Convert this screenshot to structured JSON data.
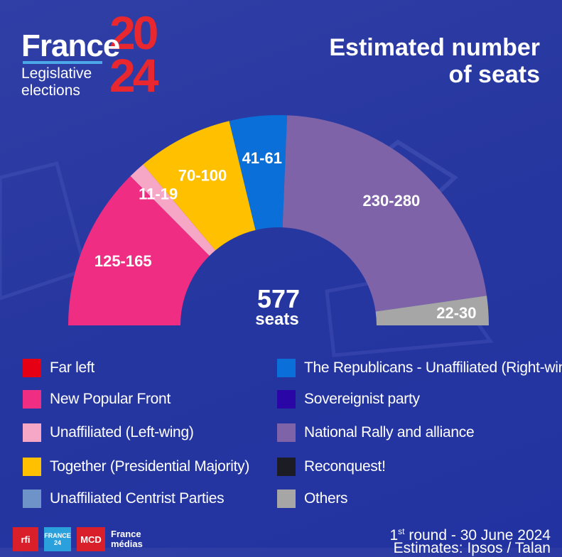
{
  "brand": {
    "name": "France",
    "year_top": "20",
    "year_bottom": "24",
    "subtitle_line1": "Legislative",
    "subtitle_line2": "elections"
  },
  "title": {
    "line1": "Estimated number",
    "line2": "of seats"
  },
  "chart_data": {
    "type": "pie",
    "subtype": "hemicycle",
    "title": "Estimated number of seats",
    "total_label": "577",
    "total_sublabel": "seats",
    "total": 577,
    "segments": [
      {
        "party": "New Popular Front",
        "range": "125-165",
        "value": 145,
        "color": "#ef2d83"
      },
      {
        "party": "Unaffiliated (Left-wing)",
        "range": "11-19",
        "value": 15,
        "color": "#f7a7c6"
      },
      {
        "party": "Together (Presidential Majority)",
        "range": "70-100",
        "value": 85,
        "color": "#ffc000"
      },
      {
        "party": "The Republicans - Unaffiliated (Right-wing)",
        "range": "41-61",
        "value": 51,
        "color": "#0a6fd8"
      },
      {
        "party": "National Rally and alliance",
        "range": "230-280",
        "value": 255,
        "color": "#7f63a8"
      },
      {
        "party": "Others",
        "range": "22-30",
        "value": 26,
        "color": "#a6a6a6"
      }
    ]
  },
  "legend": {
    "left": [
      {
        "label": "Far left",
        "color": "#e60013"
      },
      {
        "label": "New Popular Front",
        "color": "#ef2d83"
      },
      {
        "label": "Unaffiliated (Left-wing)",
        "color": "#f7a7c6"
      },
      {
        "label": "Together (Presidential Majority)",
        "color": "#ffc000"
      },
      {
        "label": "Unaffiliated Centrist Parties",
        "color": "#6e93c8"
      }
    ],
    "right": [
      {
        "label": "The Republicans - Unaffiliated (Right-wing)",
        "color": "#0a6fd8"
      },
      {
        "label": "Sovereignist party",
        "color": "#2b06a6"
      },
      {
        "label": "National Rally and alliance",
        "color": "#7f63a8"
      },
      {
        "label": "Reconquest!",
        "color": "#1c1c24"
      },
      {
        "label": "Others",
        "color": "#a6a6a6"
      }
    ]
  },
  "footer": {
    "logos": {
      "rfi": "rfi",
      "f24": "FRANCE 24",
      "mcd": "MCD",
      "fmm": "France médias"
    },
    "round_ordinal": "1",
    "round_suffix": "st",
    "round_text": " round - 30 June 2024",
    "estimates": "Estimates: Ipsos / Talan"
  }
}
